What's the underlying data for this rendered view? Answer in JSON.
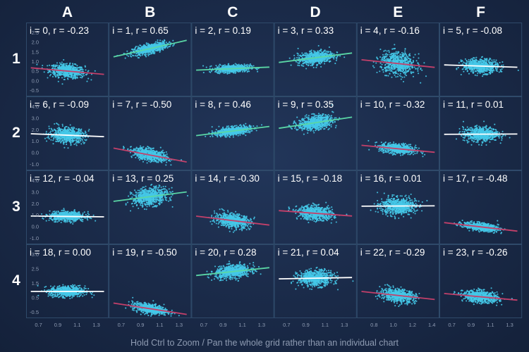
{
  "grid": {
    "columns": [
      "A",
      "B",
      "C",
      "D",
      "E",
      "F"
    ],
    "rows": [
      "1",
      "2",
      "3",
      "4"
    ]
  },
  "colors": {
    "background": "#1a2a48",
    "cell_border": "#2f4a6a",
    "scatter_point": "#45c8e8",
    "regression_positive": "#5ad6a5",
    "regression_negative": "#c3406a",
    "regression_neutral": "#ffffff",
    "text": "#ffffff",
    "tick_text": "#8e9bb2"
  },
  "footer": {
    "text": "Hold Ctrl to Zoom / Pan the whole grid rather than an individual chart"
  },
  "chart_data": {
    "type": "scatter",
    "x_axis": {
      "ticks": [
        "0.7",
        "0.9",
        "1.1",
        "1.3"
      ],
      "ticks_column_E": [
        "0.8",
        "1.0",
        "1.2",
        "1.4"
      ]
    },
    "y_axis_ticks": [
      [
        "2.5",
        "2.0",
        "1.5",
        "1.0",
        "0.5",
        "0.0",
        "-0.5"
      ],
      [
        "4.0",
        "3.0",
        "2.0",
        "1.0",
        "0.0",
        "-1.0"
      ],
      [
        "4.0",
        "3.0",
        "2.0",
        "1.0",
        "0.0",
        "-1.0"
      ],
      [
        "3.0",
        "2.5",
        "1.5",
        "0.5",
        "-0.5"
      ]
    ],
    "charts": [
      {
        "label": "i = 0, r = -0.23",
        "i": 0,
        "r": -0.23
      },
      {
        "label": "i = 1, r = 0.65",
        "i": 1,
        "r": 0.65
      },
      {
        "label": "i = 2, r = 0.19",
        "i": 2,
        "r": 0.19
      },
      {
        "label": "i = 3, r = 0.33",
        "i": 3,
        "r": 0.33
      },
      {
        "label": "i = 4, r = -0.16",
        "i": 4,
        "r": -0.16
      },
      {
        "label": "i = 5, r = -0.08",
        "i": 5,
        "r": -0.08
      },
      {
        "label": "i = 6, r = -0.09",
        "i": 6,
        "r": -0.09
      },
      {
        "label": "i = 7, r = -0.50",
        "i": 7,
        "r": -0.5
      },
      {
        "label": "i = 8, r = 0.46",
        "i": 8,
        "r": 0.46
      },
      {
        "label": "i = 9, r = 0.35",
        "i": 9,
        "r": 0.35
      },
      {
        "label": "i = 10, r = -0.32",
        "i": 10,
        "r": -0.32
      },
      {
        "label": "i = 11, r = 0.01",
        "i": 11,
        "r": 0.01
      },
      {
        "label": "i = 12, r = -0.04",
        "i": 12,
        "r": -0.04
      },
      {
        "label": "i = 13, r = 0.25",
        "i": 13,
        "r": 0.25
      },
      {
        "label": "i = 14, r = -0.30",
        "i": 14,
        "r": -0.3
      },
      {
        "label": "i = 15, r = -0.18",
        "i": 15,
        "r": -0.18
      },
      {
        "label": "i = 16, r = 0.01",
        "i": 16,
        "r": 0.01
      },
      {
        "label": "i = 17, r = -0.48",
        "i": 17,
        "r": -0.48
      },
      {
        "label": "i = 18, r = 0.00",
        "i": 18,
        "r": 0.0
      },
      {
        "label": "i = 19, r = -0.50",
        "i": 19,
        "r": -0.5
      },
      {
        "label": "i = 20, r = 0.28",
        "i": 20,
        "r": 0.28
      },
      {
        "label": "i = 21, r = 0.04",
        "i": 21,
        "r": 0.04
      },
      {
        "label": "i = 22, r = -0.29",
        "i": 22,
        "r": -0.29
      },
      {
        "label": "i = 23, r = -0.26",
        "i": 23,
        "r": -0.26
      }
    ],
    "cluster_centers_y": [
      0.75,
      2.1,
      0.9,
      1.55,
      1.2,
      1.05,
      1.8,
      -0.1,
      2.2,
      3.0,
      0.5,
      1.9,
      1.1,
      3.0,
      0.7,
      1.4,
      2.1,
      0.1,
      1.0,
      -0.3,
      2.5,
      2.0,
      0.7,
      0.6
    ],
    "cluster_spread_y": [
      0.45,
      0.4,
      0.25,
      0.45,
      0.75,
      0.45,
      0.8,
      0.7,
      0.5,
      0.8,
      0.55,
      0.75,
      0.5,
      0.95,
      0.75,
      0.75,
      0.9,
      0.45,
      0.45,
      0.45,
      0.55,
      0.65,
      0.55,
      0.5
    ],
    "cluster_center_x": 1.0,
    "cluster_spread_x": 0.2
  }
}
